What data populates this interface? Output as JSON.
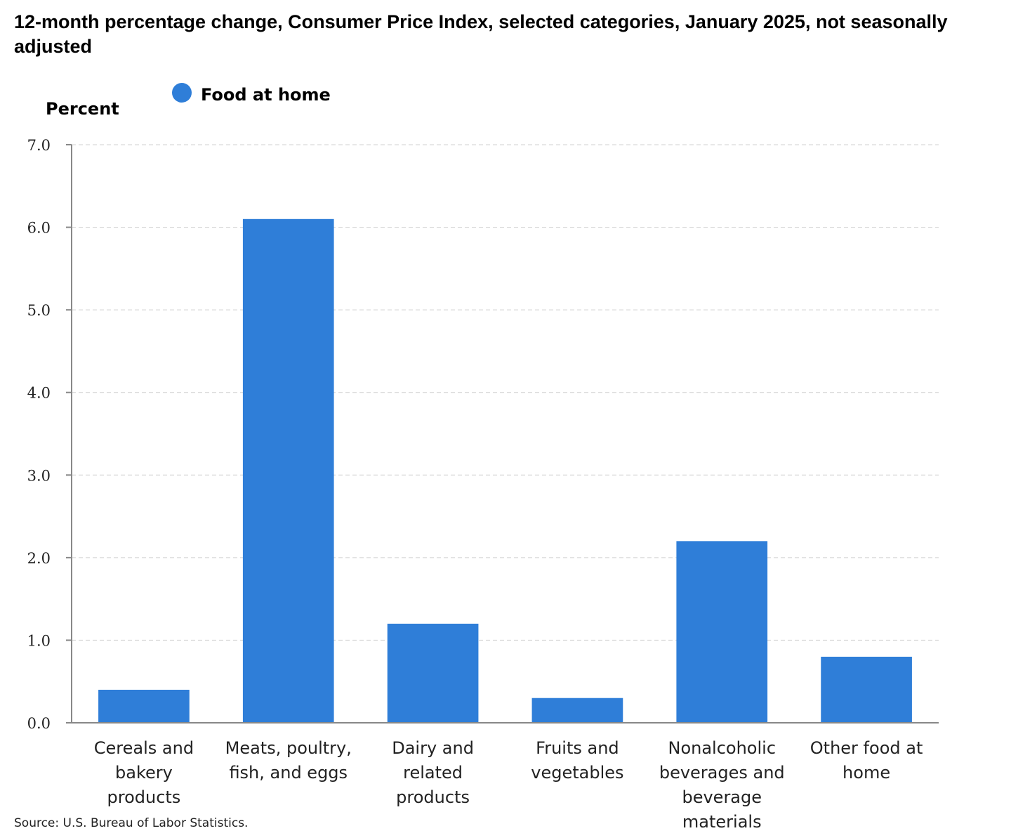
{
  "chart_data": {
    "type": "bar",
    "title": "12-month percentage change, Consumer Price Index, selected categories, January 2025, not seasonally adjusted",
    "ylabel": "Percent",
    "xlabel": "",
    "ylim": [
      0,
      7
    ],
    "yticks": [
      "0.0",
      "1.0",
      "2.0",
      "3.0",
      "4.0",
      "5.0",
      "6.0",
      "7.0"
    ],
    "grid": true,
    "legend_position": "top-left",
    "categories": [
      [
        "Cereals and",
        "bakery",
        "products"
      ],
      [
        "Meats, poultry,",
        "fish, and eggs"
      ],
      [
        "Dairy and",
        "related",
        "products"
      ],
      [
        "Fruits and",
        "vegetables"
      ],
      [
        "Nonalcoholic",
        "beverages and",
        "beverage",
        "materials"
      ],
      [
        "Other food at",
        "home"
      ]
    ],
    "series": [
      {
        "name": "Food at home",
        "color": "#2f7ed8",
        "values": [
          0.4,
          6.1,
          1.2,
          0.3,
          2.2,
          0.8
        ]
      }
    ]
  },
  "source": "Source: U.S. Bureau of Labor Statistics."
}
